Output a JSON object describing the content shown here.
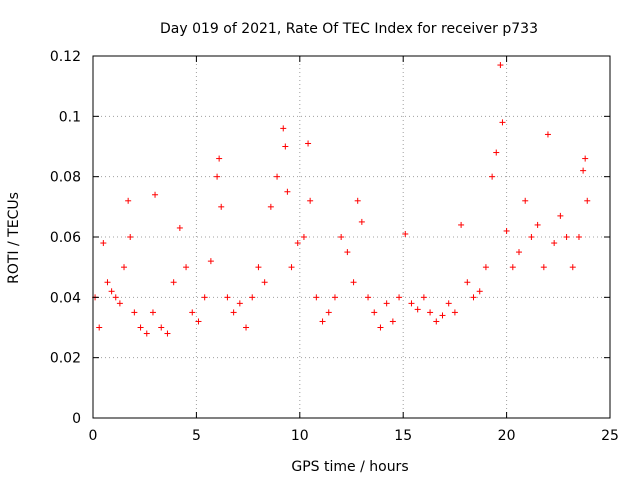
{
  "chart_data": {
    "type": "scatter",
    "title": "Day 019 of 2021, Rate Of TEC Index for receiver p733",
    "xlabel": "GPS time / hours",
    "ylabel": "ROTI / TECUs",
    "xlim": [
      0,
      25
    ],
    "ylim": [
      0,
      0.12
    ],
    "xticks": [
      0,
      5,
      10,
      15,
      20,
      25
    ],
    "xtick_labels": [
      "0",
      "5",
      "10",
      "15",
      "20",
      "25"
    ],
    "yticks": [
      0,
      0.02,
      0.04,
      0.06,
      0.08,
      0.1,
      0.12
    ],
    "ytick_labels": [
      "0",
      "0.02",
      "0.04",
      "0.06",
      "0.08",
      "0.1",
      "0.12"
    ],
    "grid": true,
    "marker": "plus",
    "color": "#ff0000",
    "series": [
      {
        "x": [
          0.1,
          0.3,
          0.5,
          0.7,
          0.9,
          1.1,
          1.3,
          1.5,
          1.7,
          1.8,
          2.0,
          2.3,
          2.6,
          2.9,
          3.0,
          3.3,
          3.6,
          3.9,
          4.2,
          4.5,
          4.8,
          5.1,
          5.4,
          5.7,
          6.0,
          6.1,
          6.2,
          6.5,
          6.8,
          7.1,
          7.4,
          7.7,
          8.0,
          8.3,
          8.6,
          8.9,
          9.2,
          9.3,
          9.4,
          9.6,
          9.9,
          10.2,
          10.4,
          10.5,
          10.8,
          11.1,
          11.4,
          11.7,
          12.0,
          12.3,
          12.6,
          12.8,
          13.0,
          13.3,
          13.6,
          13.9,
          14.2,
          14.5,
          14.8,
          15.1,
          15.4,
          15.7,
          16.0,
          16.3,
          16.6,
          16.9,
          17.2,
          17.5,
          17.8,
          18.1,
          18.4,
          18.7,
          19.0,
          19.3,
          19.5,
          19.7,
          19.8,
          20.0,
          20.3,
          20.6,
          20.9,
          21.2,
          21.5,
          21.8,
          22.0,
          22.3,
          22.6,
          22.9,
          23.2,
          23.5,
          23.7,
          23.8,
          23.9
        ],
        "y": [
          0.04,
          0.03,
          0.058,
          0.045,
          0.042,
          0.04,
          0.038,
          0.05,
          0.072,
          0.06,
          0.035,
          0.03,
          0.028,
          0.035,
          0.074,
          0.03,
          0.028,
          0.045,
          0.063,
          0.05,
          0.035,
          0.032,
          0.04,
          0.052,
          0.08,
          0.086,
          0.07,
          0.04,
          0.035,
          0.038,
          0.03,
          0.04,
          0.05,
          0.045,
          0.07,
          0.08,
          0.096,
          0.09,
          0.075,
          0.05,
          0.058,
          0.06,
          0.091,
          0.072,
          0.04,
          0.032,
          0.035,
          0.04,
          0.06,
          0.055,
          0.045,
          0.072,
          0.065,
          0.04,
          0.035,
          0.03,
          0.038,
          0.032,
          0.04,
          0.061,
          0.038,
          0.036,
          0.04,
          0.035,
          0.032,
          0.034,
          0.038,
          0.035,
          0.064,
          0.045,
          0.04,
          0.042,
          0.05,
          0.08,
          0.088,
          0.117,
          0.098,
          0.062,
          0.05,
          0.055,
          0.072,
          0.06,
          0.064,
          0.05,
          0.094,
          0.058,
          0.067,
          0.06,
          0.05,
          0.06,
          0.082,
          0.086,
          0.072
        ]
      }
    ]
  }
}
